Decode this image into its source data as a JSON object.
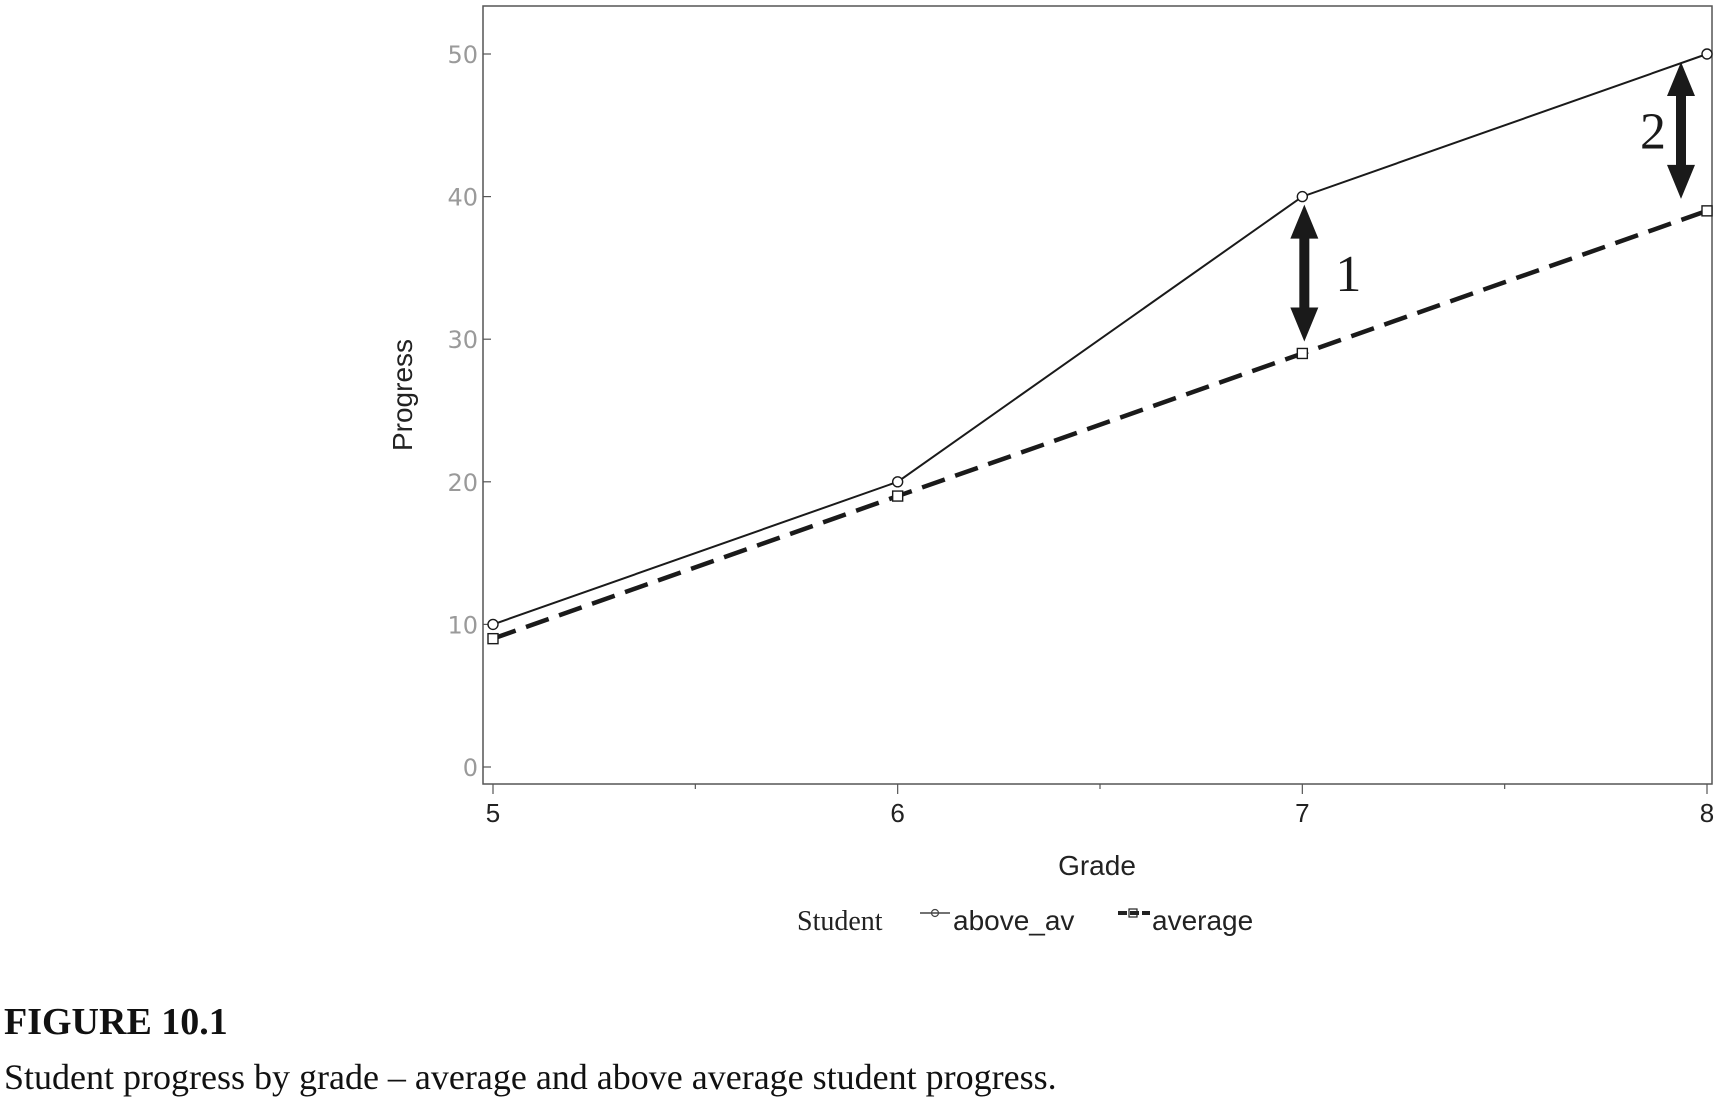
{
  "chart_data": {
    "type": "line",
    "xlabel": "Grade",
    "ylabel": "Progress",
    "x": [
      5,
      6,
      7,
      8
    ],
    "xlim": [
      5,
      8
    ],
    "ylim": [
      0,
      50
    ],
    "x_ticks": [
      5,
      6,
      7,
      8
    ],
    "y_ticks": [
      0,
      10,
      20,
      30,
      40,
      50
    ],
    "grid": false,
    "legend": {
      "title": "Student",
      "placement": "bottom-center"
    },
    "series": [
      {
        "name": "above_av",
        "values": [
          10,
          20,
          40,
          50
        ],
        "line_style": "solid",
        "marker": "circle"
      },
      {
        "name": "average",
        "values": [
          9,
          19,
          29,
          39
        ],
        "line_style": "dashed",
        "marker": "square"
      }
    ],
    "annotations": [
      {
        "label": "1",
        "x": 7,
        "from": 29,
        "to": 40,
        "shape": "double-arrow"
      },
      {
        "label": "2",
        "x": 8,
        "from": 39,
        "to": 50,
        "shape": "double-arrow"
      }
    ],
    "colors": {
      "line": "#1a1a1a",
      "frame": "#555555",
      "y_tick_text": "#9a9a9a"
    }
  },
  "caption": {
    "figure_label": "FIGURE 10.1",
    "text": "Student progress by grade – average and above average student progress."
  }
}
